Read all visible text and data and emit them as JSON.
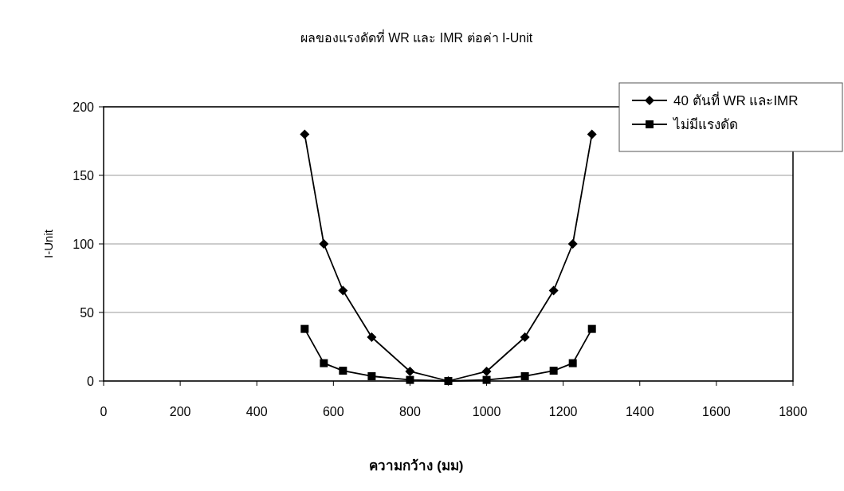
{
  "chart_data": {
    "type": "line",
    "title": "ผลของแรงดัดที่ WR และ IMR ต่อค่า I-Unit",
    "xlabel": "ความกว้าง (มม)",
    "ylabel": "I-Unit",
    "x": [
      525,
      575,
      625,
      700,
      800,
      900,
      1000,
      1100,
      1175,
      1225,
      1275
    ],
    "series": [
      {
        "name": "40 ตันที่  WR และIMR",
        "color": "#000000",
        "marker": "diamond",
        "values": [
          180,
          100,
          66,
          32,
          7,
          0,
          7,
          32,
          66,
          100,
          180
        ]
      },
      {
        "name": "ไม่มีแรงดัด",
        "color": "#000000",
        "marker": "square",
        "values": [
          38,
          13,
          7.5,
          3.5,
          0.8,
          0,
          0.8,
          3.5,
          7.5,
          13,
          38
        ]
      }
    ],
    "xlim": [
      0,
      1800
    ],
    "ylim": [
      0,
      200
    ],
    "xticks": [
      0,
      200,
      400,
      600,
      800,
      1000,
      1200,
      1400,
      1600,
      1800
    ],
    "yticks": [
      0,
      50,
      100,
      150,
      200
    ],
    "grid": "y",
    "legend": "top right",
    "line_style": "solid"
  }
}
